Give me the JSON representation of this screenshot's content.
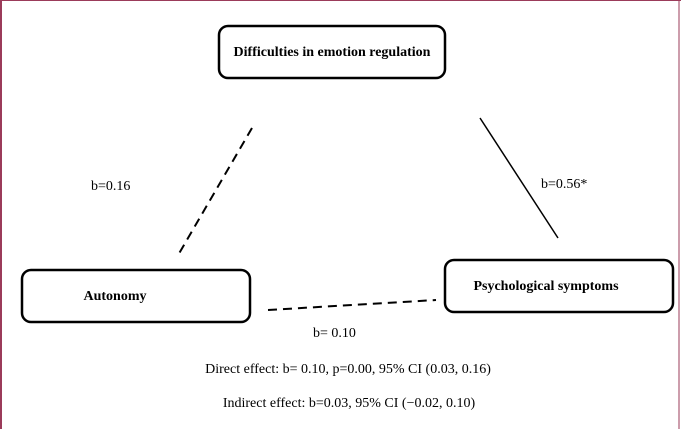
{
  "nodes": [
    {
      "label": "Difficulties in emotion regulation"
    },
    {
      "label": "Autonomy"
    },
    {
      "label": "Psychological symptoms"
    }
  ],
  "edges": [
    {
      "label": "b=0.16"
    },
    {
      "label": "b=0.56*"
    },
    {
      "label": "b= 0.10"
    }
  ],
  "notes": [
    "Direct effect: b= 0.10, p=0.00, 95% CI (0.03, 0.16)",
    "Indirect effect: b=0.03, 95% CI (−0.02, 0.10)"
  ]
}
